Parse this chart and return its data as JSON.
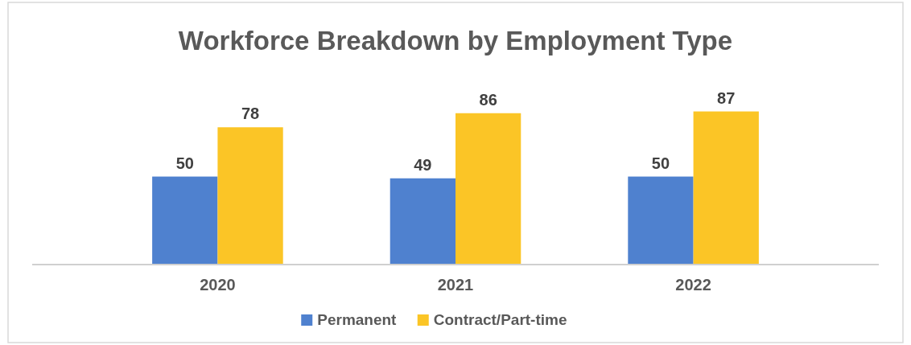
{
  "chart_data": {
    "type": "bar",
    "title": "Workforce Breakdown by Employment Type",
    "categories": [
      "2020",
      "2021",
      "2022"
    ],
    "series": [
      {
        "name": "Permanent",
        "color": "#4f81cf",
        "values": [
          50,
          49,
          50
        ]
      },
      {
        "name": "Contract/Part-time",
        "color": "#fbc526",
        "values": [
          78,
          86,
          87
        ]
      }
    ],
    "data_labels": true,
    "legend": "bottom",
    "grid": false
  }
}
